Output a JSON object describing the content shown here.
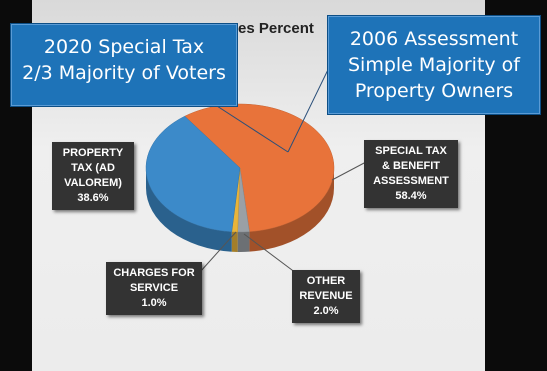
{
  "title_fragment": "es Percent",
  "callouts": {
    "left": {
      "line1": "2020 Special Tax",
      "line2": "2/3 Majority of Voters"
    },
    "right": {
      "line1": "2006 Assessment",
      "line2": "Simple Majority of",
      "line3": "Property Owners"
    }
  },
  "labels": {
    "property_tax": {
      "line1": "PROPERTY",
      "line2": "TAX (AD",
      "line3": "VALOREM)",
      "value": "38.6%"
    },
    "special_tax": {
      "line1": "SPECIAL TAX",
      "line2": "& BENEFIT",
      "line3": "ASSESSMENT",
      "value": "58.4%"
    },
    "charges": {
      "line1": "CHARGES FOR",
      "line2": "SERVICE",
      "value": "1.0%"
    },
    "other": {
      "line1": "OTHER",
      "line2": "REVENUE",
      "value": "2.0%"
    }
  },
  "colors": {
    "property_tax": "#3c8ac9",
    "special_tax": "#e8733a",
    "charges": "#e9b43a",
    "other": "#9aa0a6",
    "callout": "#1e73b8"
  },
  "chart_data": {
    "type": "pie",
    "title": "",
    "slices": [
      {
        "name": "SPECIAL TAX & BENEFIT ASSESSMENT",
        "value": 58.4
      },
      {
        "name": "OTHER REVENUE",
        "value": 2.0
      },
      {
        "name": "CHARGES FOR SERVICE",
        "value": 1.0
      },
      {
        "name": "PROPERTY TAX (AD VALOREM)",
        "value": 38.6
      }
    ]
  }
}
